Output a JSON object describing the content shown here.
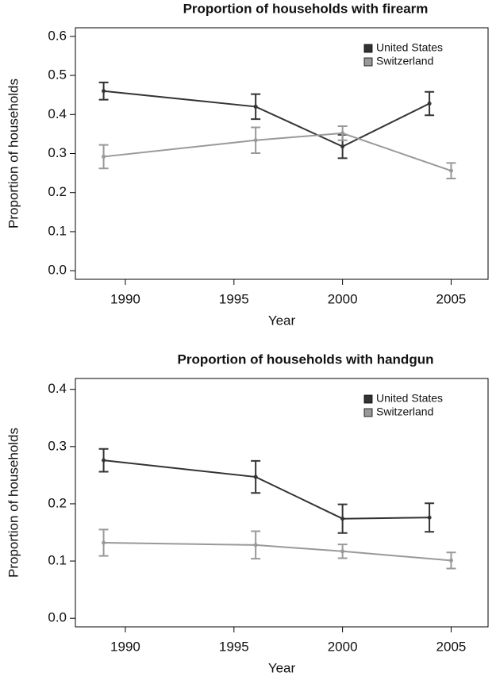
{
  "chart_data": [
    {
      "type": "line",
      "title": "Proportion of households with firearm",
      "xlabel": "Year",
      "ylabel": "Proportion of households",
      "xlim": [
        1987.7,
        2006.7
      ],
      "xticks": [
        1990,
        1995,
        2000,
        2005
      ],
      "ylim": [
        -0.022,
        0.622
      ],
      "yticks": [
        {
          "value": 0,
          "label": "0.0"
        },
        0.1,
        0.2,
        0.3,
        0.4,
        0.5,
        0.6
      ],
      "legend": "upper right",
      "series": [
        {
          "name": "United States",
          "color": "#333333",
          "x": [
            1989,
            1996,
            2000,
            2004
          ],
          "values": [
            0.46,
            0.42,
            0.318,
            0.428
          ],
          "errors": [
            0.022,
            0.032,
            0.03,
            0.03
          ]
        },
        {
          "name": "Switzerland",
          "color": "#999999",
          "x": [
            1989,
            1996,
            2000,
            2005
          ],
          "values": [
            0.292,
            0.334,
            0.352,
            0.256
          ],
          "errors": [
            0.03,
            0.033,
            0.018,
            0.02
          ]
        }
      ]
    },
    {
      "type": "line",
      "title": "Proportion of households with handgun",
      "xlabel": "Year",
      "ylabel": "Proportion of households",
      "xlim": [
        1987.7,
        2006.7
      ],
      "xticks": [
        1990,
        1995,
        2000,
        2005
      ],
      "ylim": [
        -0.015,
        0.419
      ],
      "yticks": [
        {
          "value": 0,
          "label": "0.0"
        },
        0.1,
        0.2,
        0.3,
        0.4
      ],
      "legend": "upper right",
      "series": [
        {
          "name": "United States",
          "color": "#333333",
          "x": [
            1989,
            1996,
            2000,
            2004
          ],
          "values": [
            0.276,
            0.247,
            0.174,
            0.176
          ],
          "errors": [
            0.02,
            0.028,
            0.025,
            0.025
          ]
        },
        {
          "name": "Switzerland",
          "color": "#999999",
          "x": [
            1989,
            1996,
            2000,
            2005
          ],
          "values": [
            0.132,
            0.128,
            0.117,
            0.101
          ],
          "errors": [
            0.023,
            0.024,
            0.012,
            0.014
          ]
        }
      ]
    }
  ]
}
